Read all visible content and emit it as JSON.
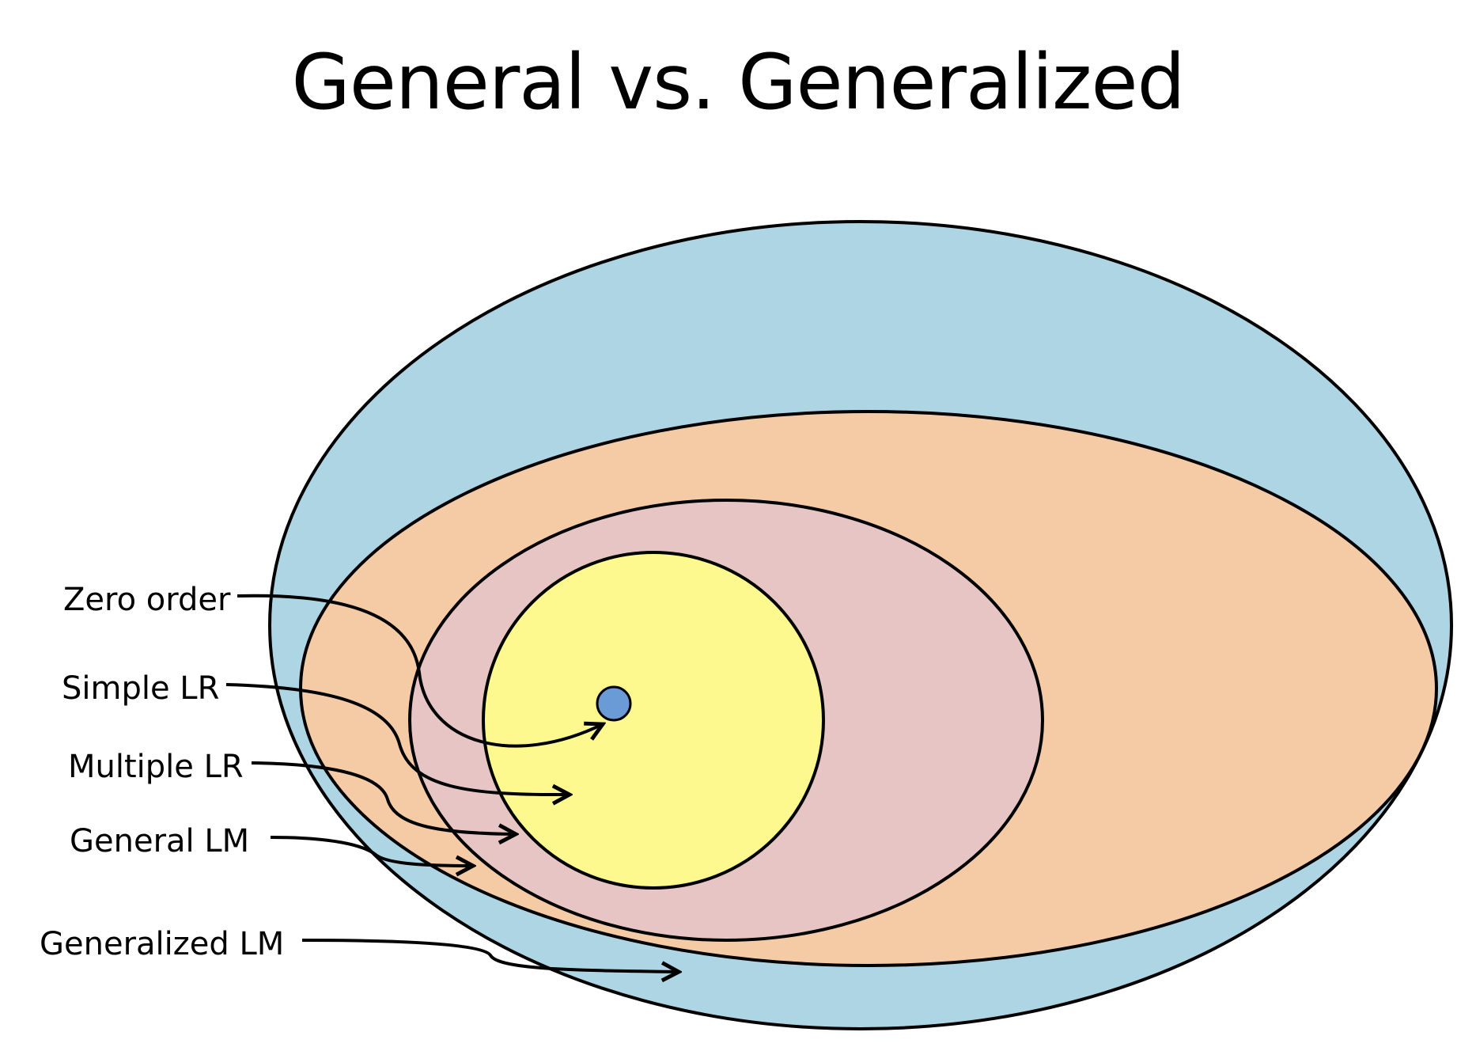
{
  "title": "General vs. Generalized",
  "labels": {
    "zero_order": "Zero order",
    "simple_lr": "Simple LR",
    "multiple_lr": "Multiple LR",
    "general_lm": "General LM",
    "generalized_lm": "Generalized LM"
  },
  "colors": {
    "generalized_lm": "#add5e3",
    "general_lm": "#f5cba6",
    "multiple_lr": "#e6c5c4",
    "simple_lr": "#fdf98e",
    "zero_order": "#6b9bd6",
    "stroke": "#000000"
  }
}
